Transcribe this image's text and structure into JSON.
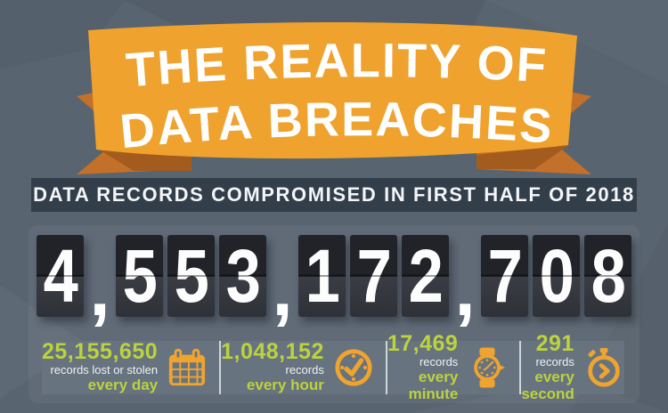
{
  "header": {
    "ribbon_line1": "THE REALITY OF",
    "ribbon_line2": "DATA BREACHES",
    "subtitle": "DATA RECORDS COMPROMISED IN FIRST HALF OF 2018"
  },
  "counter": {
    "value": "4,553,172,708",
    "separator": ",",
    "groups": [
      [
        "4"
      ],
      [
        "5",
        "5",
        "3"
      ],
      [
        "1",
        "7",
        "2"
      ],
      [
        "7",
        "0",
        "8"
      ]
    ]
  },
  "stats": [
    {
      "value": "25,155,650",
      "label": "records lost or stolen",
      "period": "every day",
      "icon": "calendar-icon"
    },
    {
      "value": "1,048,152",
      "label": "records",
      "period": "every hour",
      "icon": "clock-icon"
    },
    {
      "value": "17,469",
      "label": "records",
      "period": "every minute",
      "icon": "watch-icon"
    },
    {
      "value": "291",
      "label": "records",
      "period": "every second",
      "icon": "stopwatch-icon"
    }
  ],
  "chart_data": {
    "type": "table",
    "title": "THE REALITY OF DATA BREACHES",
    "subtitle": "DATA RECORDS COMPROMISED IN FIRST HALF OF 2018",
    "total_records_compromised": 4553172708,
    "rows": [
      {
        "period": "every day",
        "records": 25155650,
        "note": "records lost or stolen"
      },
      {
        "period": "every hour",
        "records": 1048152
      },
      {
        "period": "every minute",
        "records": 17469
      },
      {
        "period": "every second",
        "records": 291
      }
    ]
  },
  "colors": {
    "background": "#586470",
    "panel": "rgba(255,255,255,0.05)",
    "subtitle_bar": "#333e4b",
    "ribbon_main": "#efa22d",
    "ribbon_tail": "#c2702a",
    "ribbon_fold": "#a35c1e",
    "tile_top": "#212328",
    "tile_bottom": "#3a3d44",
    "digit": "#fdfdfd",
    "stats_bg": "#67737e",
    "green": "#bdd23f",
    "orange": "#efa42f",
    "text_light": "#eef2f4"
  }
}
